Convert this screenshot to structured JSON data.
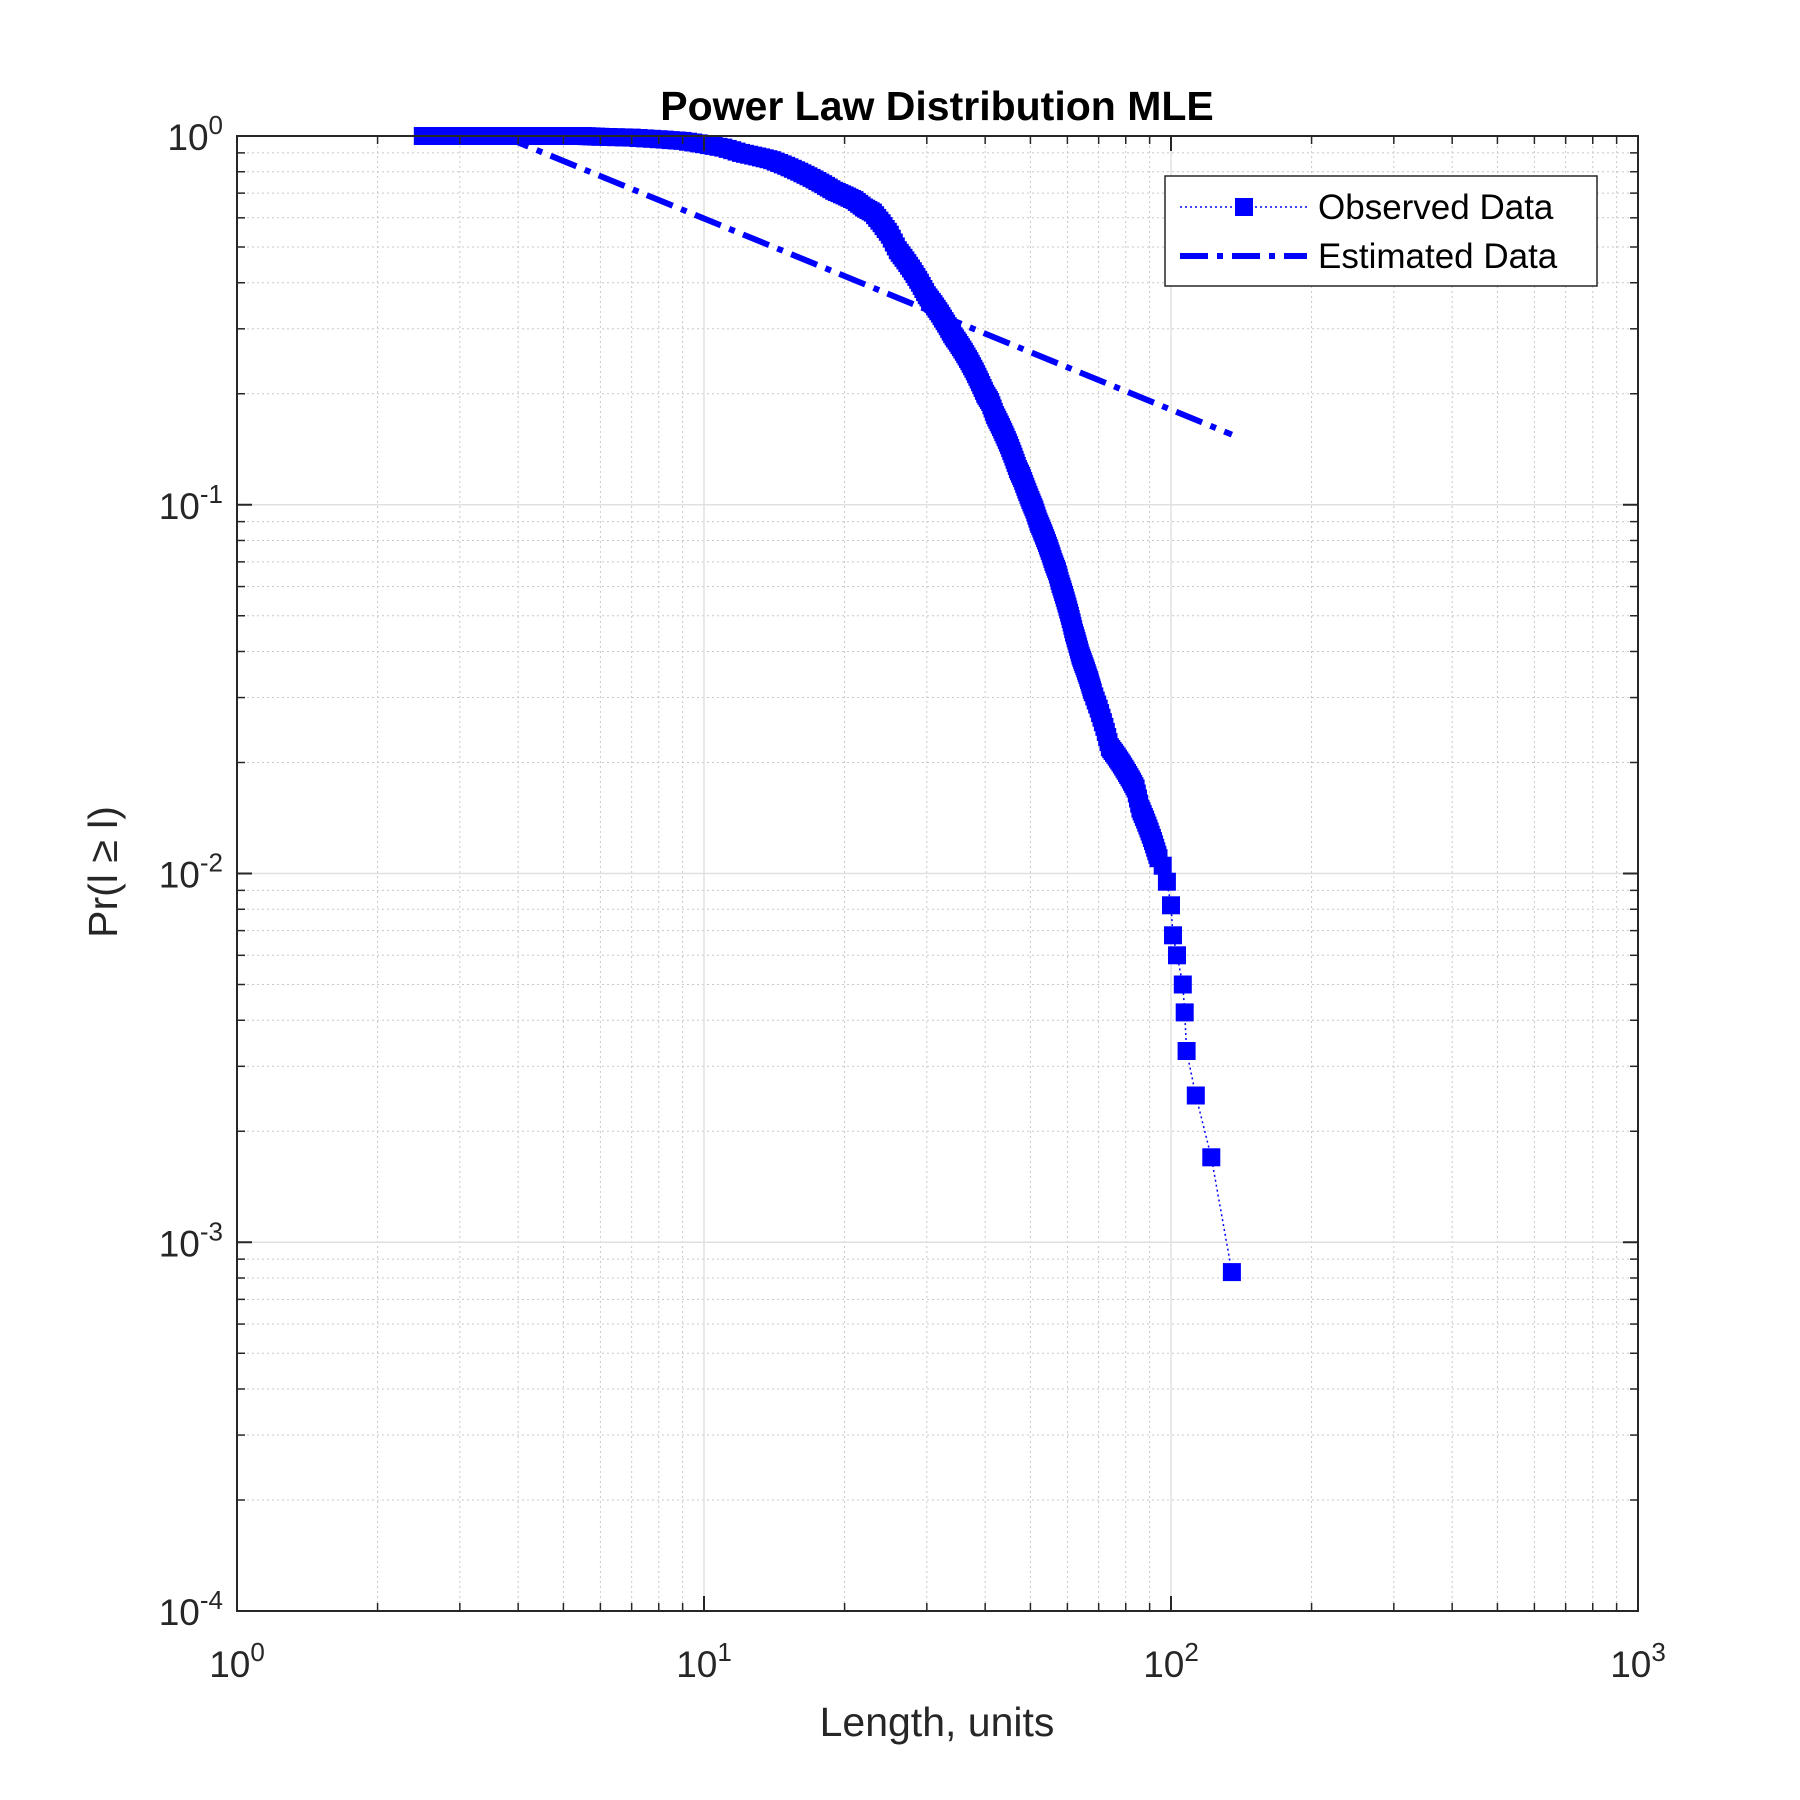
{
  "chart_data": {
    "type": "line",
    "title": "Power Law Distribution MLE",
    "xlabel": "Length, units",
    "ylabel": "Pr(l ≥ l)",
    "x_scale": "log",
    "y_scale": "log",
    "xlim": [
      1,
      1000
    ],
    "ylim": [
      0.0001,
      1
    ],
    "x_ticks": [
      {
        "base": "10",
        "exp": "0"
      },
      {
        "base": "10",
        "exp": "1"
      },
      {
        "base": "10",
        "exp": "2"
      },
      {
        "base": "10",
        "exp": "3"
      }
    ],
    "y_ticks": [
      {
        "base": "10",
        "exp": "-4"
      },
      {
        "base": "10",
        "exp": "-3"
      },
      {
        "base": "10",
        "exp": "-2"
      },
      {
        "base": "10",
        "exp": "-1"
      },
      {
        "base": "10",
        "exp": "0"
      }
    ],
    "grid": true,
    "minor_grid": true,
    "legend_position": "top-right",
    "series": [
      {
        "name": "Observed Data",
        "style": "dotted line with square markers",
        "color": "#0000ff",
        "x": [
          2.5,
          2.9,
          3.0,
          3.1,
          3.3,
          3.5,
          3.7,
          3.9,
          4.2,
          4.5,
          5.0,
          5.5,
          6.0,
          7.0,
          8.0,
          9.0,
          10.0,
          11.0,
          12.0,
          13.0,
          14.0,
          15.0,
          16.0,
          17.0,
          18.0,
          19.0,
          20.0,
          21.0,
          22.0,
          23.0,
          24.0,
          25.0,
          26.0,
          27.0,
          28.0,
          29.0,
          30.0,
          31.0,
          32.0,
          33.0,
          34.0,
          35.0,
          36.0,
          37.0,
          38.0,
          39.0,
          40.0,
          41.0,
          42.0,
          43.0,
          44.0,
          45.0,
          46.0,
          47.0,
          48.0,
          49.0,
          50.0,
          51.0,
          52.0,
          53.0,
          54.0,
          55.0,
          56.0,
          57.0,
          58.0,
          59.0,
          60.0,
          61.0,
          62.0,
          63.0,
          64.0,
          65.0,
          66.0,
          67.0,
          68.0,
          70.0,
          72.0,
          74.0,
          76.0,
          78.0,
          80.0,
          82.0,
          84.0,
          86.0,
          88.0,
          90.0,
          92.0,
          94.0,
          96.0,
          98.0,
          100.0,
          101.0,
          103.0,
          106.0,
          107.0,
          108.0,
          113.0,
          122.0,
          135.0
        ],
        "y": [
          1.0,
          1.0,
          1.0,
          1.0,
          1.0,
          1.0,
          1.0,
          1.0,
          1.0,
          1.0,
          1.0,
          1.0,
          0.995,
          0.99,
          0.98,
          0.97,
          0.95,
          0.93,
          0.9,
          0.88,
          0.86,
          0.83,
          0.8,
          0.77,
          0.74,
          0.71,
          0.69,
          0.67,
          0.64,
          0.62,
          0.58,
          0.54,
          0.49,
          0.46,
          0.43,
          0.4,
          0.37,
          0.35,
          0.33,
          0.31,
          0.29,
          0.275,
          0.26,
          0.245,
          0.23,
          0.215,
          0.2,
          0.19,
          0.175,
          0.165,
          0.155,
          0.145,
          0.135,
          0.125,
          0.118,
          0.11,
          0.103,
          0.097,
          0.09,
          0.085,
          0.08,
          0.075,
          0.07,
          0.066,
          0.061,
          0.057,
          0.053,
          0.049,
          0.045,
          0.042,
          0.039,
          0.037,
          0.035,
          0.033,
          0.031,
          0.028,
          0.025,
          0.022,
          0.021,
          0.02,
          0.019,
          0.018,
          0.017,
          0.015,
          0.014,
          0.013,
          0.012,
          0.011,
          0.0105,
          0.0095,
          0.0082,
          0.0068,
          0.006,
          0.005,
          0.0042,
          0.0033,
          0.0025,
          0.0017,
          0.00083
        ]
      },
      {
        "name": "Estimated Data",
        "style": "dash-dot line",
        "color": "#0000ff",
        "x": [
          3.7,
          135.0
        ],
        "y": [
          1.0,
          0.155
        ]
      }
    ]
  }
}
